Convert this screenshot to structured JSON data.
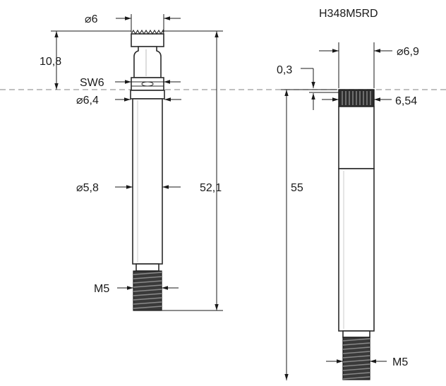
{
  "title": "H348M5RD",
  "left_part": {
    "dia_top": "⌀6",
    "height_top": "10,8",
    "wrench": "SW6",
    "dia_collar": "⌀6,4",
    "dia_shaft": "⌀5,8",
    "length": "52,1",
    "thread": "M5"
  },
  "right_part": {
    "offset": "0,3",
    "dia_top": "⌀6,9",
    "dia_knurl": "6,54",
    "length": "55",
    "thread": "M5"
  }
}
